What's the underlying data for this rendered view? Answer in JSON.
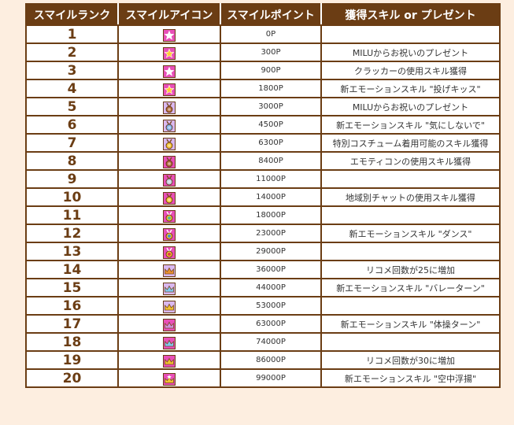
{
  "headers": [
    "スマイルランク",
    "スマイルアイコン",
    "スマイルポイント",
    "獲得スキル or プレゼント"
  ],
  "rows": [
    {
      "rank": "1",
      "points": "0P",
      "skill": "",
      "icon": {
        "name": "star-icon",
        "bg": "#e84fb8",
        "fg": "#ffffff"
      }
    },
    {
      "rank": "2",
      "points": "300P",
      "skill": "MILUからお祝いのプレゼント",
      "icon": {
        "name": "star-icon",
        "bg": "#e84fb8",
        "fg": "#ffcc33"
      }
    },
    {
      "rank": "3",
      "points": "900P",
      "skill": "クラッカーの使用スキル獲得",
      "icon": {
        "name": "star-icon",
        "bg": "#e84fb8",
        "fg": "#ffffff"
      }
    },
    {
      "rank": "4",
      "points": "1800P",
      "skill": "新エモーションスキル \"投げキッス\"",
      "icon": {
        "name": "star-icon",
        "bg": "#e84fb8",
        "fg": "#ffcc33"
      }
    },
    {
      "rank": "5",
      "points": "3000P",
      "skill": "MILUからお祝いのプレゼント",
      "icon": {
        "name": "medal-icon",
        "bg": "#d9b8f0",
        "fg": "#b06a3a"
      }
    },
    {
      "rank": "6",
      "points": "4500P",
      "skill": "新エモーションスキル \"気にしないで\"",
      "icon": {
        "name": "medal-icon",
        "bg": "#d9b8f0",
        "fg": "#7fb0e8"
      }
    },
    {
      "rank": "7",
      "points": "6300P",
      "skill": "特別コスチューム着用可能のスキル獲得",
      "icon": {
        "name": "medal-icon",
        "bg": "#d9b8f0",
        "fg": "#f0c030"
      }
    },
    {
      "rank": "8",
      "points": "8400P",
      "skill": "エモティコンの使用スキル獲得",
      "icon": {
        "name": "medal-icon",
        "bg": "#e84fb8",
        "fg": "#b06a3a"
      }
    },
    {
      "rank": "9",
      "points": "11000P",
      "skill": "",
      "icon": {
        "name": "medal-icon",
        "bg": "#e84fb8",
        "fg": "#c0c8d8"
      }
    },
    {
      "rank": "10",
      "points": "14000P",
      "skill": "地域別チャットの使用スキル獲得",
      "icon": {
        "name": "medal-icon",
        "bg": "#e84fb8",
        "fg": "#f0c030"
      }
    },
    {
      "rank": "11",
      "points": "18000P",
      "skill": "",
      "icon": {
        "name": "gem-medal-icon",
        "bg": "#e84fb8",
        "fg": "#50c0a0"
      }
    },
    {
      "rank": "12",
      "points": "23000P",
      "skill": "新エモーションスキル \"ダンス\"",
      "icon": {
        "name": "gem-medal-icon",
        "bg": "#e84fb8",
        "fg": "#4090e0"
      }
    },
    {
      "rank": "13",
      "points": "29000P",
      "skill": "",
      "icon": {
        "name": "gem-medal-icon",
        "bg": "#e84fb8",
        "fg": "#e04040"
      }
    },
    {
      "rank": "14",
      "points": "36000P",
      "skill": "リコメ回数が25に増加",
      "icon": {
        "name": "crown-icon",
        "bg": "#d9b8f0",
        "fg": "#e89030"
      }
    },
    {
      "rank": "15",
      "points": "44000P",
      "skill": "新エモーションスキル \"バレーターン\"",
      "icon": {
        "name": "crown-icon",
        "bg": "#d9b8f0",
        "fg": "#80c8f0"
      }
    },
    {
      "rank": "16",
      "points": "53000P",
      "skill": "",
      "icon": {
        "name": "crown-icon",
        "bg": "#d9b8f0",
        "fg": "#f0c030"
      }
    },
    {
      "rank": "17",
      "points": "63000P",
      "skill": "新エモーションスキル \"体操ターン\"",
      "icon": {
        "name": "crown-icon",
        "bg": "#e84fb8",
        "fg": "#d090e0"
      }
    },
    {
      "rank": "18",
      "points": "74000P",
      "skill": "",
      "icon": {
        "name": "crown-icon",
        "bg": "#e84fb8",
        "fg": "#80c8f0"
      }
    },
    {
      "rank": "19",
      "points": "86000P",
      "skill": "リコメ回数が30に増加",
      "icon": {
        "name": "crown-icon",
        "bg": "#e84fb8",
        "fg": "#f0c030"
      }
    },
    {
      "rank": "20",
      "points": "99000P",
      "skill": "新エモーションスキル \"空中浮揚\"",
      "icon": {
        "name": "crown-star-icon",
        "bg": "#e84fb8",
        "fg": "#f0c030"
      }
    }
  ]
}
